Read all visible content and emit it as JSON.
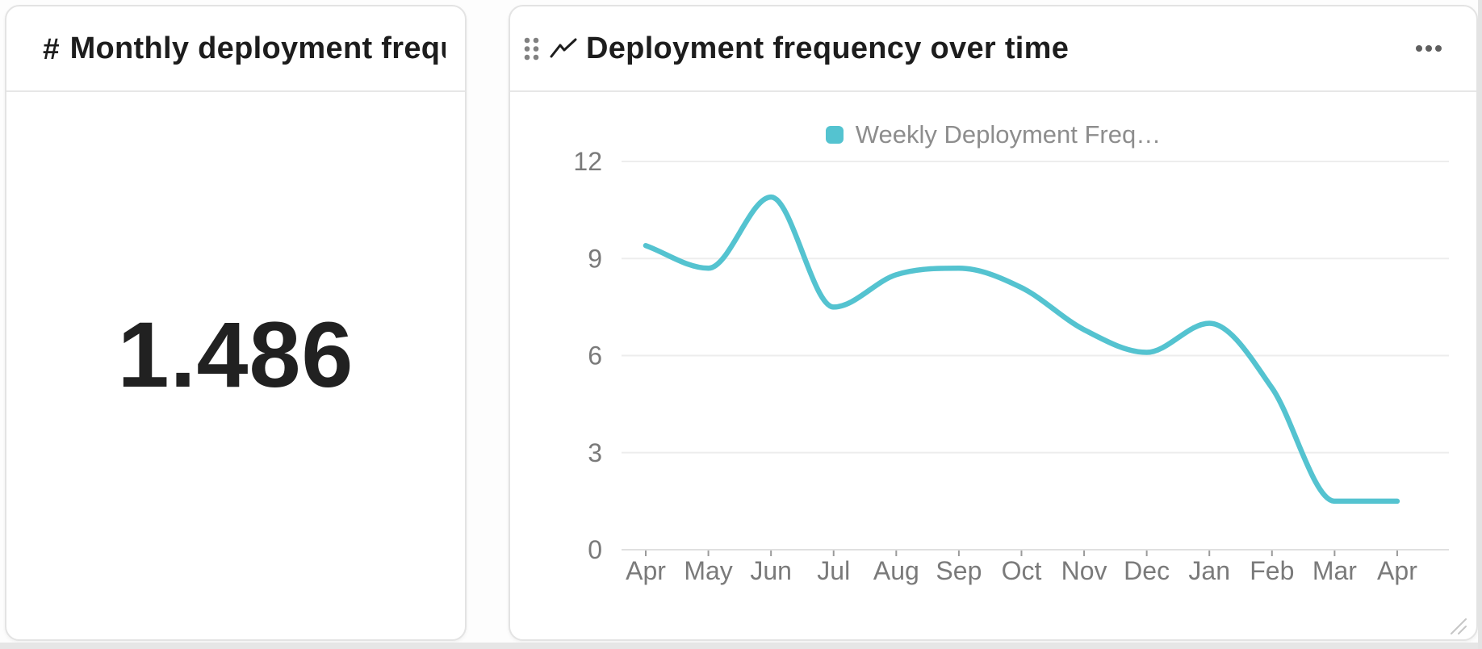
{
  "metric_card": {
    "icon_glyph": "#",
    "title": "Monthly deployment frequen…",
    "value": "1.486"
  },
  "chart_card": {
    "title": "Deployment frequency over time",
    "menu_icon": "ellipsis-icon",
    "drag_icon": "drag-handle-icon",
    "type_icon": "line-chart-icon",
    "resize_icon": "resize-grip-icon"
  },
  "chart_data": {
    "type": "line",
    "title": "Deployment frequency over time",
    "categories": [
      "Apr",
      "May",
      "Jun",
      "Jul",
      "Aug",
      "Sep",
      "Oct",
      "Nov",
      "Dec",
      "Jan",
      "Feb",
      "Mar",
      "Apr"
    ],
    "series": [
      {
        "name": "Weekly Deployment Freq…",
        "values": [
          9.4,
          8.7,
          10.9,
          7.5,
          8.5,
          8.7,
          8.1,
          6.8,
          6.1,
          7.0,
          5.0,
          1.5,
          1.5
        ],
        "color": "#54c3d0"
      }
    ],
    "xlabel": "",
    "ylabel": "",
    "ylim": [
      0,
      12
    ],
    "yticks": [
      0,
      3,
      6,
      9,
      12
    ],
    "smooth": true,
    "grid": "horizontal",
    "legend_position": "top",
    "colors": {
      "line": "#54c3d0",
      "gridline": "#ededed",
      "axis_line": "#e0e0e0",
      "tick_mark": "#9b9b9b",
      "axis_label": "#7a7a7a",
      "legend_label": "#8d8d8d"
    }
  }
}
